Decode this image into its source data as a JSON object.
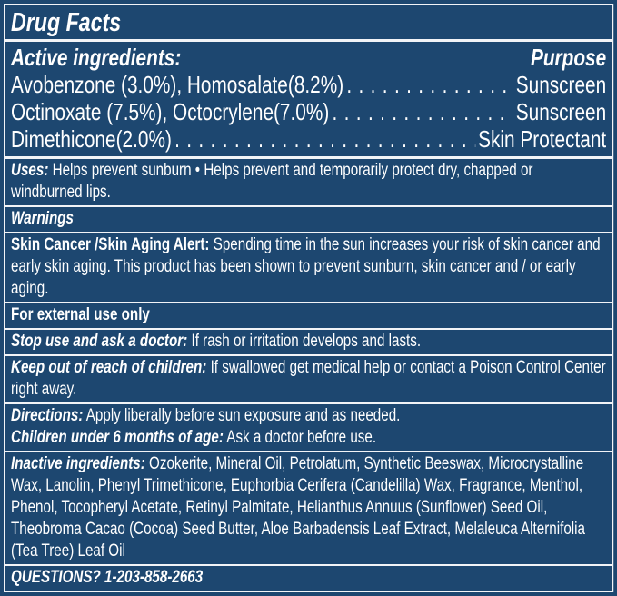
{
  "title": "Drug Facts",
  "active": {
    "heading": "Active ingredients:",
    "purpose_heading": "Purpose",
    "rows": [
      {
        "ingredient": "Avobenzone (3.0%), Homosalate(8.2%)",
        "purpose": "Sunscreen"
      },
      {
        "ingredient": "Octinoxate (7.5%), Octocrylene(7.0%)",
        "purpose": "Sunscreen"
      },
      {
        "ingredient": "Dimethicone(2.0%)",
        "purpose": "Skin Protectant"
      }
    ]
  },
  "uses": {
    "label": "Uses:",
    "text": " Helps prevent sunburn • Helps prevent and temporarily protect dry, chapped or windburned lips."
  },
  "warnings": {
    "heading": "Warnings",
    "skin_label": "Skin Cancer /Skin Aging Alert:",
    "skin_text": " Spending time in the sun increases your risk of skin cancer and early skin aging. This product has been shown to prevent sunburn, skin cancer and / or early aging.",
    "external": "For external use only",
    "stop_label": "Stop use and ask a doctor:",
    "stop_text": " If rash or irritation develops and lasts.",
    "keep_label": "Keep out of reach of children:",
    "keep_text": " If swallowed get medical help or contact a Poison Control Center right away."
  },
  "directions": {
    "label": "Directions:",
    "text": " Apply liberally before sun exposure and as needed.",
    "children_label": "Children under 6 months of age:",
    "children_text": " Ask a doctor before use."
  },
  "inactive": {
    "label": "Inactive ingredients:",
    "text": " Ozokerite, Mineral Oil, Petrolatum, Synthetic Beeswax, Microcrystalline Wax, Lanolin, Phenyl Trimethicone, Euphorbia Cerifera (Candelilla) Wax, Fragrance, Menthol, Phenol, Tocopheryl Acetate, Retinyl Palmitate, Helianthus Annuus (Sunflower) Seed Oil, Theobroma Cacao (Cocoa) Seed Butter, Aloe Barbadensis Leaf Extract, Melaleuca Alternifolia (Tea Tree) Leaf Oil"
  },
  "questions": "QUESTIONS? 1-203-858-2663",
  "colors": {
    "background": "#1d4770",
    "text": "#ffffff",
    "border": "#f2f4f7"
  }
}
